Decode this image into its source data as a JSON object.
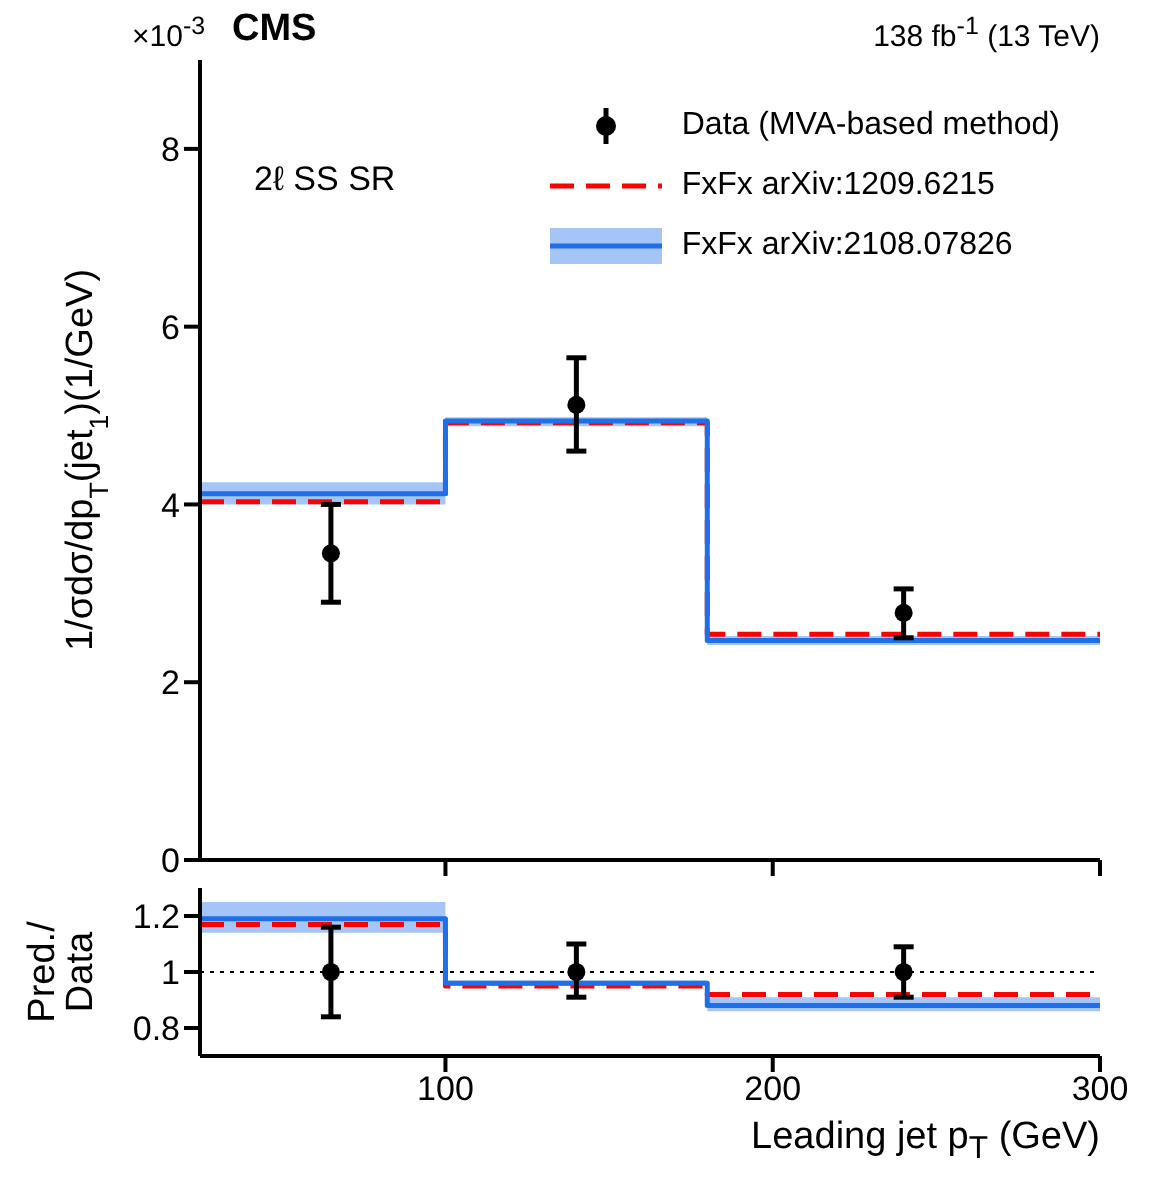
{
  "chart_data": [
    {
      "type": "step",
      "title": "CMS",
      "ylabel": "1/σdσ/dp$_{T}$(jet$_{1}$)(1/GeV)",
      "annotations": [
        "×10$^{-3}$",
        "2ℓ SS SR",
        "138 fb$^{-1}$ (13 TeV)"
      ],
      "xlim": [
        25,
        300
      ],
      "xticks": [
        100,
        200,
        300
      ],
      "ylim": [
        0,
        9
      ],
      "yticks": [
        0,
        2,
        4,
        6,
        8
      ],
      "tick_labels": "y",
      "legend": "top right",
      "grid": false,
      "series": [
        {
          "type": "scatter",
          "name": "Data (MVA-based method)",
          "color": "#000000",
          "marker": "circle",
          "x": [
            65,
            140,
            240
          ],
          "values": [
            3.45,
            5.12,
            2.78
          ],
          "errors": [
            [
              2.9,
              4.0
            ],
            [
              4.6,
              5.65
            ],
            [
              2.5,
              3.05
            ]
          ]
        },
        {
          "name": "FxFx arXiv:1209.6215",
          "color": "#ff0000",
          "line_style": "dashed",
          "x": [
            25,
            100,
            180,
            300
          ],
          "values": [
            4.03,
            4.92,
            2.54,
            2.54
          ]
        },
        {
          "name": "FxFx arXiv:2108.07826",
          "color": "#1f6fe8",
          "line_style": "solid",
          "x": [
            25,
            100,
            180,
            300
          ],
          "values": [
            4.12,
            4.94,
            2.47,
            2.47
          ],
          "lower": [
            4.0,
            4.88,
            2.42,
            2.42
          ],
          "upper": [
            4.25,
            4.98,
            2.52,
            2.52
          ]
        }
      ]
    },
    {
      "type": "step",
      "ylabel": "Pred./\nData",
      "xlabel": "Leading jet p$_{T}$ (GeV)",
      "xlim": [
        25,
        300
      ],
      "xticks": [
        100,
        200,
        300
      ],
      "ylim": [
        0.7,
        1.3
      ],
      "yticks": [
        0.8,
        1,
        1.2
      ],
      "grid": false,
      "ref_lines": [
        {
          "axis": "y",
          "value": 1,
          "color": "#000000",
          "line_style": "dotted"
        }
      ],
      "series": [
        {
          "type": "scatter",
          "color": "#000000",
          "marker": "circle",
          "x": [
            65,
            140,
            240
          ],
          "values": [
            1,
            1,
            1
          ],
          "errors": [
            [
              0.84,
              1.16
            ],
            [
              0.91,
              1.1
            ],
            [
              0.91,
              1.09
            ]
          ]
        },
        {
          "color": "#ff0000",
          "line_style": "dashed",
          "x": [
            25,
            100,
            180,
            300
          ],
          "values": [
            1.17,
            0.95,
            0.92,
            0.92
          ]
        },
        {
          "color": "#1f6fe8",
          "line_style": "solid",
          "x": [
            25,
            100,
            180,
            300
          ],
          "values": [
            1.19,
            0.96,
            0.88,
            0.88
          ],
          "lower": [
            1.14,
            0.95,
            0.86,
            0.86
          ],
          "upper": [
            1.25,
            0.97,
            0.91,
            0.91
          ]
        }
      ]
    }
  ]
}
